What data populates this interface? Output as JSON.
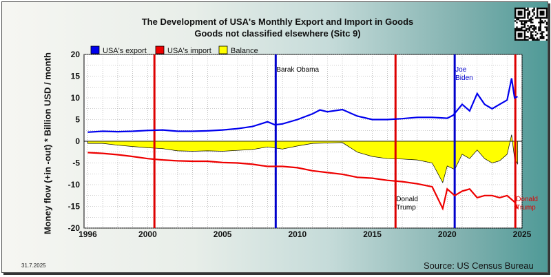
{
  "page": {
    "title_line1": "The Development of USA's Monthly Export and Import in Goods",
    "title_line2": "Goods not classified elsewhere (Sitc 9)",
    "date": "31.7.2025",
    "source": "Source: US Census Bureau"
  },
  "chart_data": {
    "type": "line",
    "ylabel": "Money flow (+in -out) * Billion USD / month",
    "xlabel": "",
    "xlim": [
      1995.75,
      2025.0
    ],
    "ylim": [
      -20,
      20
    ],
    "x_ticks": [
      1996,
      2000,
      2005,
      2010,
      2015,
      2020,
      2025
    ],
    "y_ticks": [
      20,
      15,
      10,
      5,
      0,
      -5,
      -10,
      -15,
      -20
    ],
    "grid": true,
    "legend_position": "top-left",
    "series": [
      {
        "name": "USA's export",
        "color": "#0000ee",
        "points": [
          [
            1996,
            2.1
          ],
          [
            1997,
            2.3
          ],
          [
            1998,
            2.2
          ],
          [
            1999,
            2.3
          ],
          [
            2000,
            2.5
          ],
          [
            2001,
            2.6
          ],
          [
            2002,
            2.3
          ],
          [
            2003,
            2.3
          ],
          [
            2004,
            2.4
          ],
          [
            2005,
            2.6
          ],
          [
            2006,
            2.9
          ],
          [
            2007,
            3.4
          ],
          [
            2008,
            4.5
          ],
          [
            2008.5,
            3.8
          ],
          [
            2009,
            4.0
          ],
          [
            2010,
            5.0
          ],
          [
            2011,
            6.3
          ],
          [
            2011.5,
            7.2
          ],
          [
            2012,
            6.8
          ],
          [
            2013,
            7.3
          ],
          [
            2014,
            5.8
          ],
          [
            2015,
            5.0
          ],
          [
            2016,
            5.0
          ],
          [
            2017,
            5.2
          ],
          [
            2018,
            5.5
          ],
          [
            2019,
            5.5
          ],
          [
            2020,
            5.3
          ],
          [
            2020.4,
            6.0
          ],
          [
            2021,
            8.5
          ],
          [
            2021.5,
            7.0
          ],
          [
            2022,
            11.0
          ],
          [
            2022.5,
            8.5
          ],
          [
            2023,
            7.5
          ],
          [
            2023.5,
            8.5
          ],
          [
            2024,
            9.5
          ],
          [
            2024.3,
            14.5
          ],
          [
            2024.5,
            10.0
          ],
          [
            2024.7,
            10.3
          ]
        ]
      },
      {
        "name": "USA's import",
        "color": "#ee0000",
        "points": [
          [
            1996,
            -2.6
          ],
          [
            1997,
            -2.8
          ],
          [
            1998,
            -3.1
          ],
          [
            1999,
            -3.5
          ],
          [
            2000,
            -4.0
          ],
          [
            2001,
            -4.3
          ],
          [
            2002,
            -4.5
          ],
          [
            2003,
            -4.6
          ],
          [
            2004,
            -4.6
          ],
          [
            2005,
            -4.9
          ],
          [
            2006,
            -5.0
          ],
          [
            2007,
            -5.3
          ],
          [
            2008,
            -5.8
          ],
          [
            2009,
            -5.8
          ],
          [
            2010,
            -6.1
          ],
          [
            2011,
            -6.8
          ],
          [
            2012,
            -7.2
          ],
          [
            2013,
            -7.6
          ],
          [
            2014,
            -8.3
          ],
          [
            2015,
            -8.5
          ],
          [
            2016,
            -9.0
          ],
          [
            2017,
            -9.3
          ],
          [
            2018,
            -9.8
          ],
          [
            2019,
            -10.5
          ],
          [
            2019.7,
            -15.5
          ],
          [
            2020,
            -11.0
          ],
          [
            2020.5,
            -12.5
          ],
          [
            2021,
            -11.5
          ],
          [
            2021.5,
            -11.0
          ],
          [
            2022,
            -13.0
          ],
          [
            2022.5,
            -12.5
          ],
          [
            2023,
            -12.5
          ],
          [
            2023.5,
            -13.0
          ],
          [
            2024,
            -12.5
          ],
          [
            2024.5,
            -14.0
          ],
          [
            2024.7,
            -15.5
          ]
        ]
      },
      {
        "name": "Balance",
        "color": "#ffff00",
        "points": [
          [
            1996,
            -0.5
          ],
          [
            1997,
            -0.5
          ],
          [
            1998,
            -0.9
          ],
          [
            1999,
            -1.2
          ],
          [
            2000,
            -1.5
          ],
          [
            2001,
            -1.7
          ],
          [
            2002,
            -2.2
          ],
          [
            2003,
            -2.3
          ],
          [
            2004,
            -2.2
          ],
          [
            2005,
            -2.3
          ],
          [
            2006,
            -2.1
          ],
          [
            2007,
            -1.9
          ],
          [
            2008,
            -1.3
          ],
          [
            2009,
            -1.8
          ],
          [
            2010,
            -1.1
          ],
          [
            2011,
            -0.5
          ],
          [
            2012,
            -0.4
          ],
          [
            2013,
            -0.3
          ],
          [
            2014,
            -2.5
          ],
          [
            2015,
            -3.5
          ],
          [
            2016,
            -4.0
          ],
          [
            2017,
            -4.1
          ],
          [
            2018,
            -4.3
          ],
          [
            2019,
            -5.0
          ],
          [
            2019.7,
            -9.5
          ],
          [
            2020,
            -5.7
          ],
          [
            2020.5,
            -6.5
          ],
          [
            2021,
            -3.0
          ],
          [
            2021.5,
            -4.0
          ],
          [
            2022,
            -2.0
          ],
          [
            2022.5,
            -4.0
          ],
          [
            2023,
            -5.0
          ],
          [
            2023.5,
            -4.5
          ],
          [
            2024,
            -3.0
          ],
          [
            2024.3,
            1.5
          ],
          [
            2024.5,
            -4.0
          ],
          [
            2024.7,
            -5.2
          ]
        ]
      }
    ],
    "events": [
      {
        "x": 2000.45,
        "color": "#dd0000",
        "label": []
      },
      {
        "x": 2008.55,
        "color": "#0000cc",
        "label": [
          "Barak Obama"
        ]
      },
      {
        "x": 2016.55,
        "color": "#dd0000",
        "label": [
          "Donald",
          "Trump"
        ]
      },
      {
        "x": 2020.5,
        "color": "#0000cc",
        "label": [
          "Joe",
          "Biden"
        ]
      },
      {
        "x": 2024.55,
        "color": "#dd0000",
        "label": [
          "Donald",
          "Trump"
        ]
      }
    ]
  }
}
